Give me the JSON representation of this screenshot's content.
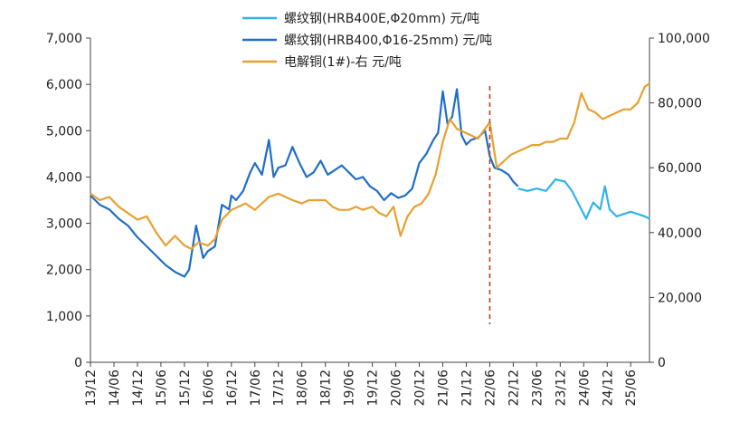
{
  "chart_data": {
    "type": "line",
    "title": "",
    "left_axis": {
      "ylim": [
        0,
        7000
      ],
      "ticks": [
        "0",
        "1,000",
        "2,000",
        "3,000",
        "4,000",
        "5,000",
        "6,000",
        "7,000"
      ]
    },
    "right_axis": {
      "ylim": [
        0,
        100000
      ],
      "ticks": [
        "0",
        "20,000",
        "40,000",
        "60,000",
        "80,000",
        "100,000"
      ]
    },
    "x_ticks": [
      "13/12",
      "14/06",
      "14/12",
      "15/06",
      "15/12",
      "16/06",
      "16/12",
      "17/06",
      "17/12",
      "18/06",
      "18/12",
      "19/06",
      "19/12",
      "20/06",
      "20/12",
      "21/06",
      "21/12",
      "22/06",
      "22/12",
      "23/06",
      "23/12",
      "24/06",
      "24/12",
      "25/06"
    ],
    "xlim": [
      0,
      23.8
    ],
    "legend_position": "top",
    "marker_line": {
      "x": 17.0,
      "label": ""
    },
    "series": [
      {
        "name": "螺纹钢(HRB400E,Φ20mm) 元/吨",
        "axis": "left",
        "color": "#2fb4ea",
        "x": [
          18.2,
          18.6,
          19.0,
          19.4,
          19.8,
          20.2,
          20.5,
          20.8,
          21.1,
          21.4,
          21.7,
          21.9,
          22.1,
          22.4,
          22.7,
          23.0,
          23.3,
          23.6,
          23.8
        ],
        "values": [
          3750,
          3700,
          3750,
          3700,
          3950,
          3900,
          3700,
          3400,
          3100,
          3450,
          3300,
          3800,
          3300,
          3150,
          3200,
          3250,
          3200,
          3150,
          3100
        ]
      },
      {
        "name": "螺纹钢(HRB400,Φ16-25mm) 元/吨",
        "axis": "left",
        "color": "#1f6fc6",
        "x": [
          0.0,
          0.4,
          0.8,
          1.2,
          1.6,
          2.0,
          2.4,
          2.8,
          3.2,
          3.6,
          4.0,
          4.2,
          4.5,
          4.8,
          5.0,
          5.3,
          5.6,
          5.9,
          6.0,
          6.2,
          6.5,
          6.8,
          7.0,
          7.3,
          7.6,
          7.8,
          8.0,
          8.3,
          8.6,
          8.9,
          9.2,
          9.5,
          9.8,
          10.1,
          10.4,
          10.7,
          11.0,
          11.3,
          11.6,
          11.9,
          12.2,
          12.5,
          12.8,
          13.1,
          13.4,
          13.7,
          14.0,
          14.3,
          14.6,
          14.8,
          15.0,
          15.2,
          15.4,
          15.6,
          15.8,
          16.0,
          16.2,
          16.5,
          16.8,
          17.0,
          17.2,
          17.5,
          17.8,
          18.0,
          18.2
        ],
        "values": [
          3600,
          3400,
          3300,
          3100,
          2950,
          2700,
          2500,
          2300,
          2100,
          1950,
          1850,
          2000,
          2950,
          2250,
          2400,
          2500,
          3400,
          3300,
          3600,
          3500,
          3700,
          4100,
          4300,
          4050,
          4800,
          4000,
          4200,
          4250,
          4650,
          4300,
          4000,
          4100,
          4350,
          4050,
          4150,
          4250,
          4100,
          3950,
          4000,
          3800,
          3700,
          3500,
          3650,
          3550,
          3600,
          3750,
          4300,
          4500,
          4800,
          4950,
          5850,
          5150,
          5300,
          5900,
          4900,
          4700,
          4800,
          4850,
          5000,
          4450,
          4200,
          4150,
          4050,
          3900,
          3800
        ]
      },
      {
        "name": "电解铜(1#)-右 元/吨",
        "axis": "right",
        "color": "#e8a030",
        "x": [
          0.0,
          0.4,
          0.8,
          1.2,
          1.6,
          2.0,
          2.4,
          2.8,
          3.2,
          3.6,
          4.0,
          4.3,
          4.6,
          5.0,
          5.3,
          5.6,
          6.0,
          6.3,
          6.6,
          7.0,
          7.3,
          7.6,
          8.0,
          8.3,
          8.6,
          9.0,
          9.3,
          9.6,
          10.0,
          10.3,
          10.6,
          11.0,
          11.3,
          11.6,
          12.0,
          12.3,
          12.6,
          12.9,
          13.2,
          13.5,
          13.8,
          14.1,
          14.4,
          14.7,
          15.0,
          15.3,
          15.6,
          15.9,
          16.2,
          16.5,
          16.8,
          17.0,
          17.3,
          17.6,
          17.9,
          18.2,
          18.5,
          18.8,
          19.1,
          19.4,
          19.7,
          20.0,
          20.3,
          20.6,
          20.9,
          21.2,
          21.5,
          21.8,
          22.1,
          22.4,
          22.7,
          23.0,
          23.3,
          23.6,
          23.8
        ],
        "values": [
          52000,
          50000,
          51000,
          48000,
          46000,
          44000,
          45000,
          40000,
          36000,
          39000,
          36000,
          35000,
          37000,
          36000,
          38000,
          44000,
          47000,
          48000,
          49000,
          47000,
          49000,
          51000,
          52000,
          51000,
          50000,
          49000,
          50000,
          50000,
          50000,
          48000,
          47000,
          47000,
          48000,
          47000,
          48000,
          46000,
          45000,
          48000,
          39000,
          45000,
          48000,
          49000,
          52000,
          58000,
          68000,
          75000,
          72000,
          71000,
          70000,
          69000,
          72000,
          74000,
          60000,
          62000,
          64000,
          65000,
          66000,
          67000,
          67000,
          68000,
          68000,
          69000,
          69000,
          74000,
          83000,
          78000,
          77000,
          75000,
          76000,
          77000,
          78000,
          78000,
          80000,
          85000,
          86000
        ]
      }
    ]
  }
}
